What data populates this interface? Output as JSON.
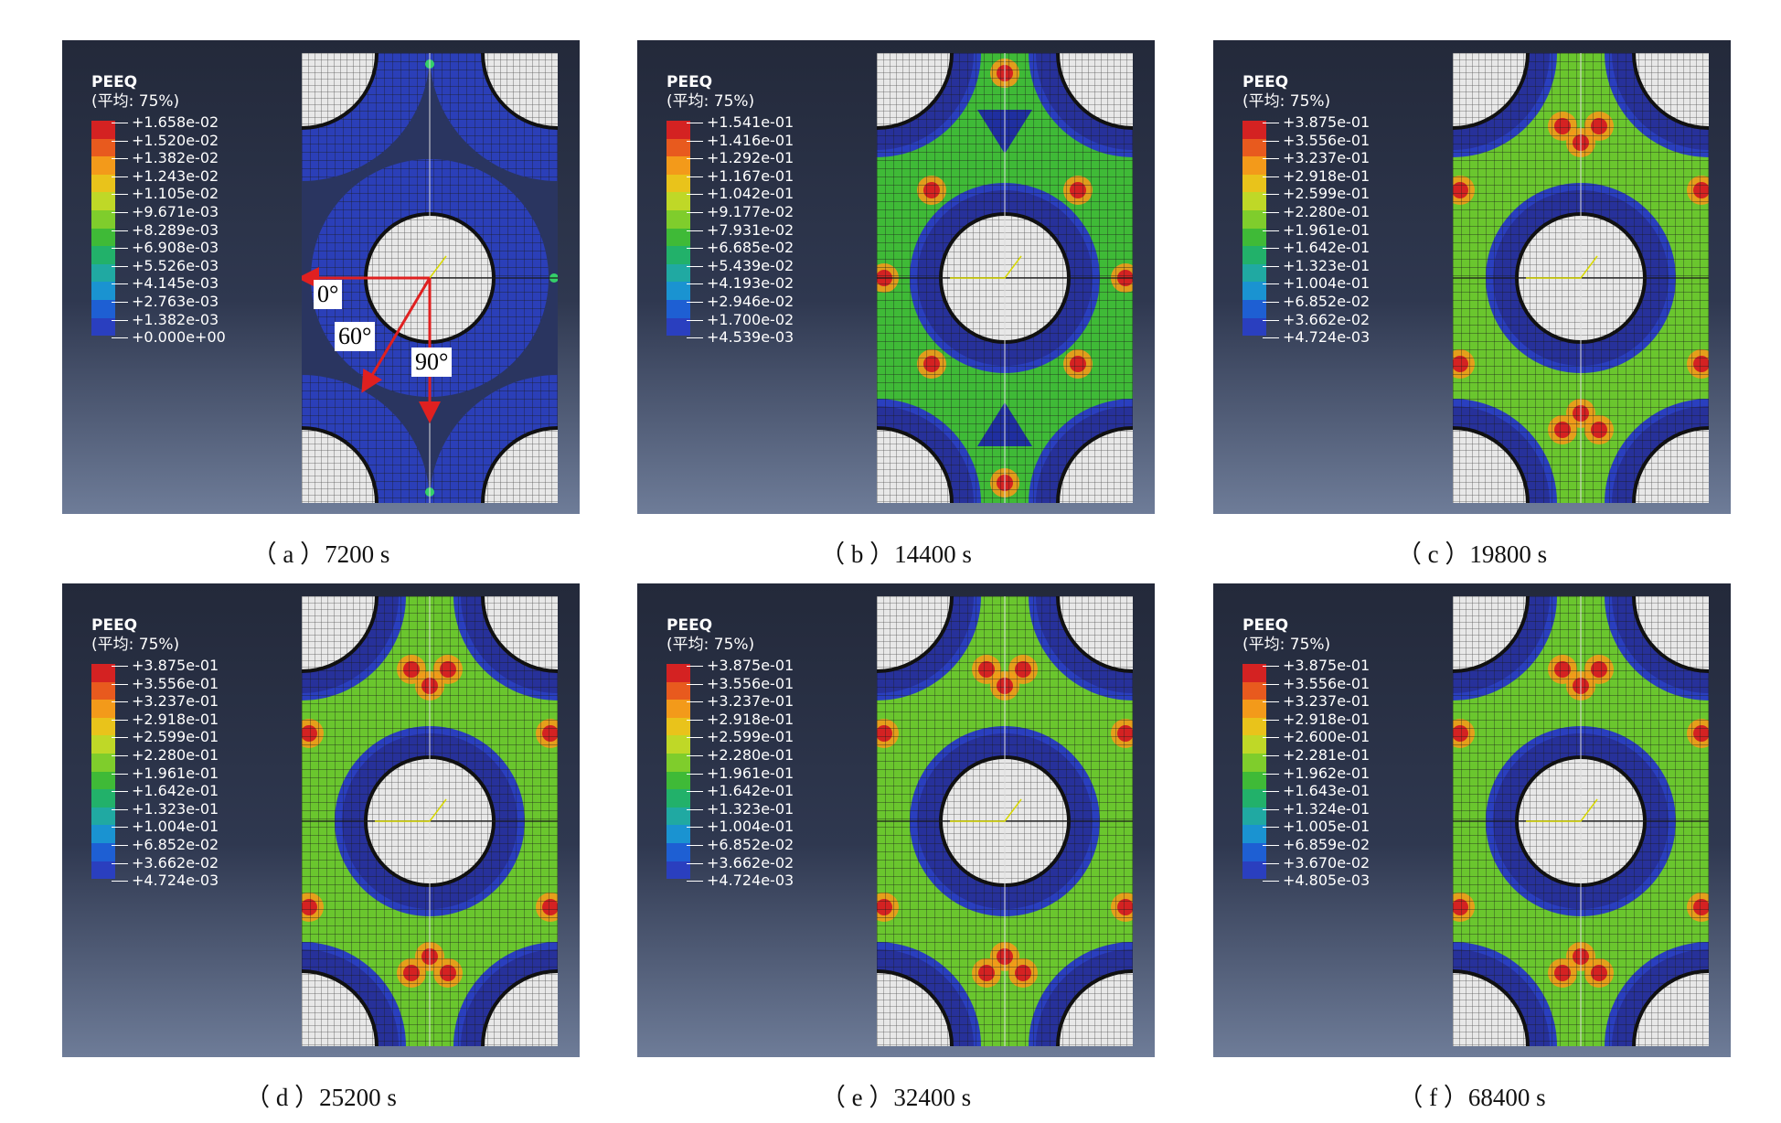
{
  "legend_title": "PEEQ",
  "legend_subtitle": "(平均: 75%)",
  "colors": {
    "scale": [
      "#d42222",
      "#e85a1e",
      "#f39a1a",
      "#e9c31b",
      "#bfd827",
      "#7fcd2c",
      "#3fba37",
      "#22b16a",
      "#20a9a2",
      "#1a93d1",
      "#1e5fd3",
      "#2a3fbf",
      "#27319a"
    ],
    "background_top": "#23293a",
    "background_bottom": "#6e7c98",
    "annotation_arrow": "#e02020"
  },
  "panels": [
    {
      "caption": "（ a ）7200 s",
      "stage": 0,
      "legend_values": [
        "+1.658e-02",
        "+1.520e-02",
        "+1.382e-02",
        "+1.243e-02",
        "+1.105e-02",
        "+9.671e-03",
        "+8.289e-03",
        "+6.908e-03",
        "+5.526e-03",
        "+4.145e-03",
        "+2.763e-03",
        "+1.382e-03",
        "+0.000e+00"
      ],
      "angle_labels": [
        "0°",
        "60°",
        "90°"
      ]
    },
    {
      "caption": "（ b ）14400 s",
      "stage": 1,
      "legend_values": [
        "+1.541e-01",
        "+1.416e-01",
        "+1.292e-01",
        "+1.167e-01",
        "+1.042e-01",
        "+9.177e-02",
        "+7.931e-02",
        "+6.685e-02",
        "+5.439e-02",
        "+4.193e-02",
        "+2.946e-02",
        "+1.700e-02",
        "+4.539e-03"
      ]
    },
    {
      "caption": "（ c ）19800 s",
      "stage": 2,
      "legend_values": [
        "+3.875e-01",
        "+3.556e-01",
        "+3.237e-01",
        "+2.918e-01",
        "+2.599e-01",
        "+2.280e-01",
        "+1.961e-01",
        "+1.642e-01",
        "+1.323e-01",
        "+1.004e-01",
        "+6.852e-02",
        "+3.662e-02",
        "+4.724e-03"
      ]
    },
    {
      "caption": "（ d ）25200 s",
      "stage": 2,
      "legend_values": [
        "+3.875e-01",
        "+3.556e-01",
        "+3.237e-01",
        "+2.918e-01",
        "+2.599e-01",
        "+2.280e-01",
        "+1.961e-01",
        "+1.642e-01",
        "+1.323e-01",
        "+1.004e-01",
        "+6.852e-02",
        "+3.662e-02",
        "+4.724e-03"
      ]
    },
    {
      "caption": "（ e ）32400 s",
      "stage": 2,
      "legend_values": [
        "+3.875e-01",
        "+3.556e-01",
        "+3.237e-01",
        "+2.918e-01",
        "+2.599e-01",
        "+2.280e-01",
        "+1.961e-01",
        "+1.642e-01",
        "+1.323e-01",
        "+1.004e-01",
        "+6.852e-02",
        "+3.662e-02",
        "+4.724e-03"
      ]
    },
    {
      "caption": "（ f ）68400 s",
      "stage": 2,
      "legend_values": [
        "+3.875e-01",
        "+3.556e-01",
        "+3.237e-01",
        "+2.918e-01",
        "+2.600e-01",
        "+2.281e-01",
        "+1.962e-01",
        "+1.643e-01",
        "+1.324e-01",
        "+1.005e-01",
        "+6.859e-02",
        "+3.670e-02",
        "+4.805e-03"
      ]
    }
  ]
}
